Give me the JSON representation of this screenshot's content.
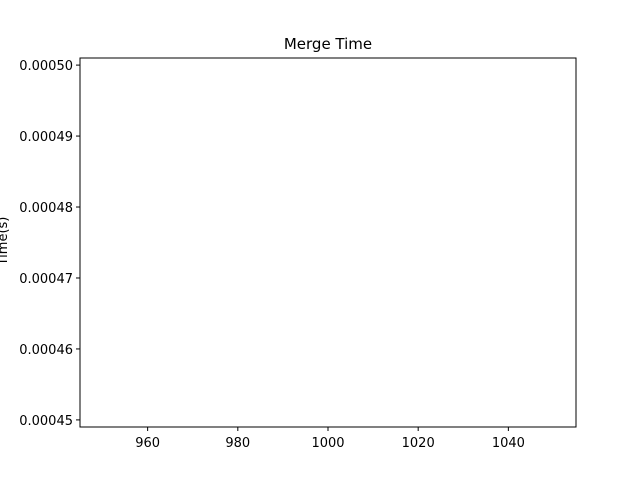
{
  "chart_data": {
    "type": "line",
    "title": "Merge Time",
    "xlabel": "",
    "ylabel": "Time(s)",
    "xlim": [
      945,
      1055
    ],
    "ylim": [
      0.000449,
      0.000501
    ],
    "x_ticks": [
      960,
      980,
      1000,
      1020,
      1040
    ],
    "x_tick_labels": [
      "960",
      "980",
      "1000",
      "1020",
      "1040"
    ],
    "y_ticks": [
      0.00045,
      0.00046,
      0.00047,
      0.00048,
      0.00049,
      0.0005
    ],
    "y_tick_labels": [
      "0.00045",
      "0.00046",
      "0.00047",
      "0.00048",
      "0.00049",
      "0.00050"
    ],
    "series": [],
    "grid": false,
    "legend": "none",
    "colors": {
      "axes": "#000000",
      "background": "#ffffff"
    }
  }
}
